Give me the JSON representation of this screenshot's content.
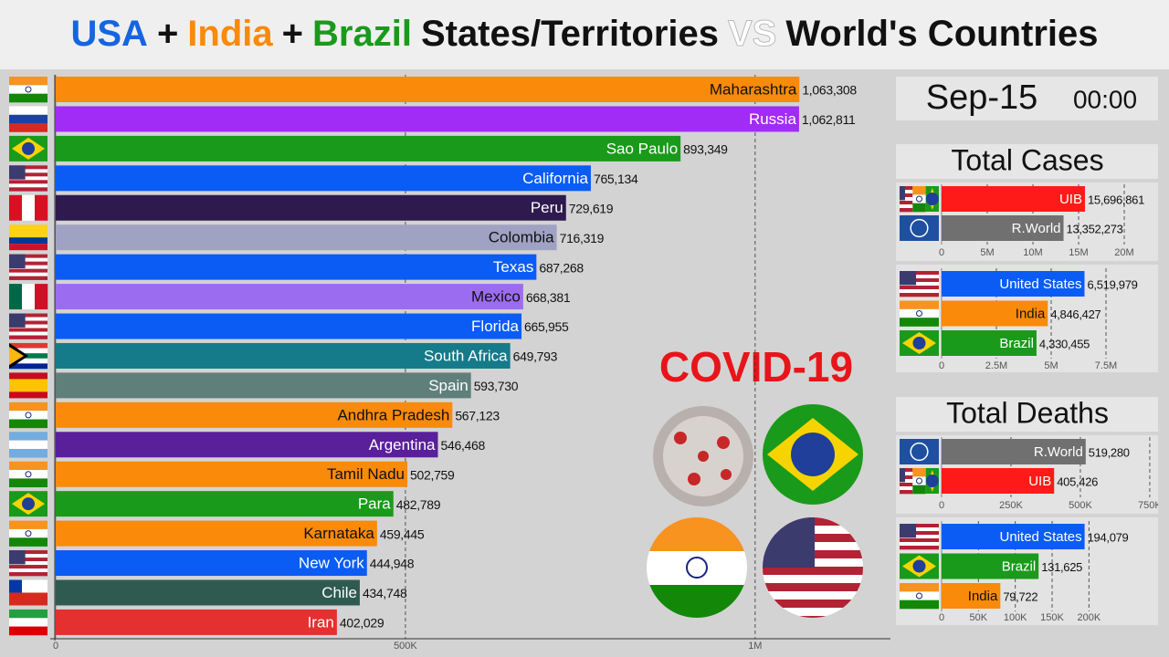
{
  "title": [
    {
      "text": "USA",
      "color": "#1565e0"
    },
    {
      "text": "+",
      "color": "#111111"
    },
    {
      "text": "India",
      "color": "#f98a0a"
    },
    {
      "text": "+",
      "color": "#111111"
    },
    {
      "text": "Brazil",
      "color": "#1a9a1a"
    },
    {
      "text": "States/Territories",
      "color": "#111111"
    },
    {
      "text": "VS",
      "color": "#ffffff"
    },
    {
      "text": "World's Countries",
      "color": "#111111"
    }
  ],
  "clock": {
    "date": "Sep-15",
    "time": "00:00"
  },
  "annotation": "COVID-19",
  "chart_data": [
    {
      "type": "bar",
      "orientation": "horizontal",
      "categories": [
        "Maharashtra",
        "Russia",
        "Sao Paulo",
        "California",
        "Peru",
        "Colombia",
        "Texas",
        "Mexico",
        "Florida",
        "South Africa",
        "Spain",
        "Andhra Pradesh",
        "Argentina",
        "Tamil Nadu",
        "Para",
        "Karnataka",
        "New York",
        "Chile",
        "Iran"
      ],
      "values": [
        1063308,
        1062811,
        893349,
        765134,
        729619,
        716319,
        687268,
        668381,
        665955,
        649793,
        593730,
        567123,
        546468,
        502759,
        482789,
        459445,
        444948,
        434748,
        402029
      ],
      "value_labels": [
        "1,063,308",
        "1,062,811",
        "893,349",
        "765,134",
        "729,619",
        "716,319",
        "687,268",
        "668,381",
        "665,955",
        "649,793",
        "593,730",
        "567,123",
        "546,468",
        "502,759",
        "482,789",
        "459,445",
        "444,948",
        "434,748",
        "402,029"
      ],
      "colors": [
        "#f98a0a",
        "#a12cf5",
        "#1a9a1a",
        "#0a5cf5",
        "#2e1a4f",
        "#a0a2c4",
        "#0a5cf5",
        "#9c6cf0",
        "#0a5cf5",
        "#157a8a",
        "#5f7f7a",
        "#f98a0a",
        "#5a1f9a",
        "#f98a0a",
        "#1a9a1a",
        "#f98a0a",
        "#0a5cf5",
        "#2f5a50",
        "#e53030"
      ],
      "xlim": [
        0,
        1200000
      ],
      "xticks": [
        0,
        {
          "value": 500000,
          "label": "500K"
        },
        {
          "value": 1000000,
          "label": "1M"
        }
      ],
      "grid": true
    },
    {
      "type": "bar",
      "orientation": "horizontal",
      "title": "Total Cases",
      "categories": [
        "UIB",
        "R.World"
      ],
      "values": [
        15696861,
        13352273
      ],
      "value_labels": [
        "15,696,861",
        "13,352,273"
      ],
      "colors": [
        "#ff1a1a",
        "#707070"
      ],
      "xlim": [
        0,
        23400000
      ],
      "xticks": [
        0,
        {
          "value": 5000000,
          "label": "5M"
        },
        {
          "value": 10000000,
          "label": "10M"
        },
        {
          "value": 15000000,
          "label": "15M"
        },
        {
          "value": 20000000,
          "label": "20M"
        }
      ],
      "grid": true
    },
    {
      "type": "bar",
      "orientation": "horizontal",
      "categories": [
        "United States",
        "India",
        "Brazil"
      ],
      "values": [
        6519979,
        4846427,
        4330455
      ],
      "value_labels": [
        "6,519,979",
        "4,846,427",
        "4,330,455"
      ],
      "colors": [
        "#0a5cf5",
        "#f98a0a",
        "#1a9a1a"
      ],
      "xlim": [
        0,
        9750000
      ],
      "xticks": [
        0,
        {
          "value": 2500000,
          "label": "2.5M"
        },
        {
          "value": 5000000,
          "label": "5M"
        },
        {
          "value": 7500000,
          "label": "7.5M"
        }
      ],
      "grid": true
    },
    {
      "type": "bar",
      "orientation": "horizontal",
      "title": "Total Deaths",
      "categories": [
        "R.World",
        "UIB"
      ],
      "values": [
        519280,
        405426
      ],
      "value_labels": [
        "519,280",
        "405,426"
      ],
      "colors": [
        "#707070",
        "#ff1a1a"
      ],
      "xlim": [
        0,
        770000
      ],
      "xticks": [
        0,
        {
          "value": 250000,
          "label": "250K"
        },
        {
          "value": 500000,
          "label": "500K"
        },
        {
          "value": 750000,
          "label": "750K"
        }
      ],
      "grid": true
    },
    {
      "type": "bar",
      "orientation": "horizontal",
      "categories": [
        "United States",
        "Brazil",
        "India"
      ],
      "values": [
        194079,
        131625,
        79722
      ],
      "value_labels": [
        "194,079",
        "131,625",
        "79,722"
      ],
      "colors": [
        "#0a5cf5",
        "#1a9a1a",
        "#f98a0a"
      ],
      "xlim": [
        0,
        290000
      ],
      "xticks": [
        0,
        {
          "value": 50000,
          "label": "50K"
        },
        {
          "value": 100000,
          "label": "100K"
        },
        {
          "value": 150000,
          "label": "150K"
        },
        {
          "value": 200000,
          "label": "200K"
        }
      ],
      "grid": true
    }
  ]
}
